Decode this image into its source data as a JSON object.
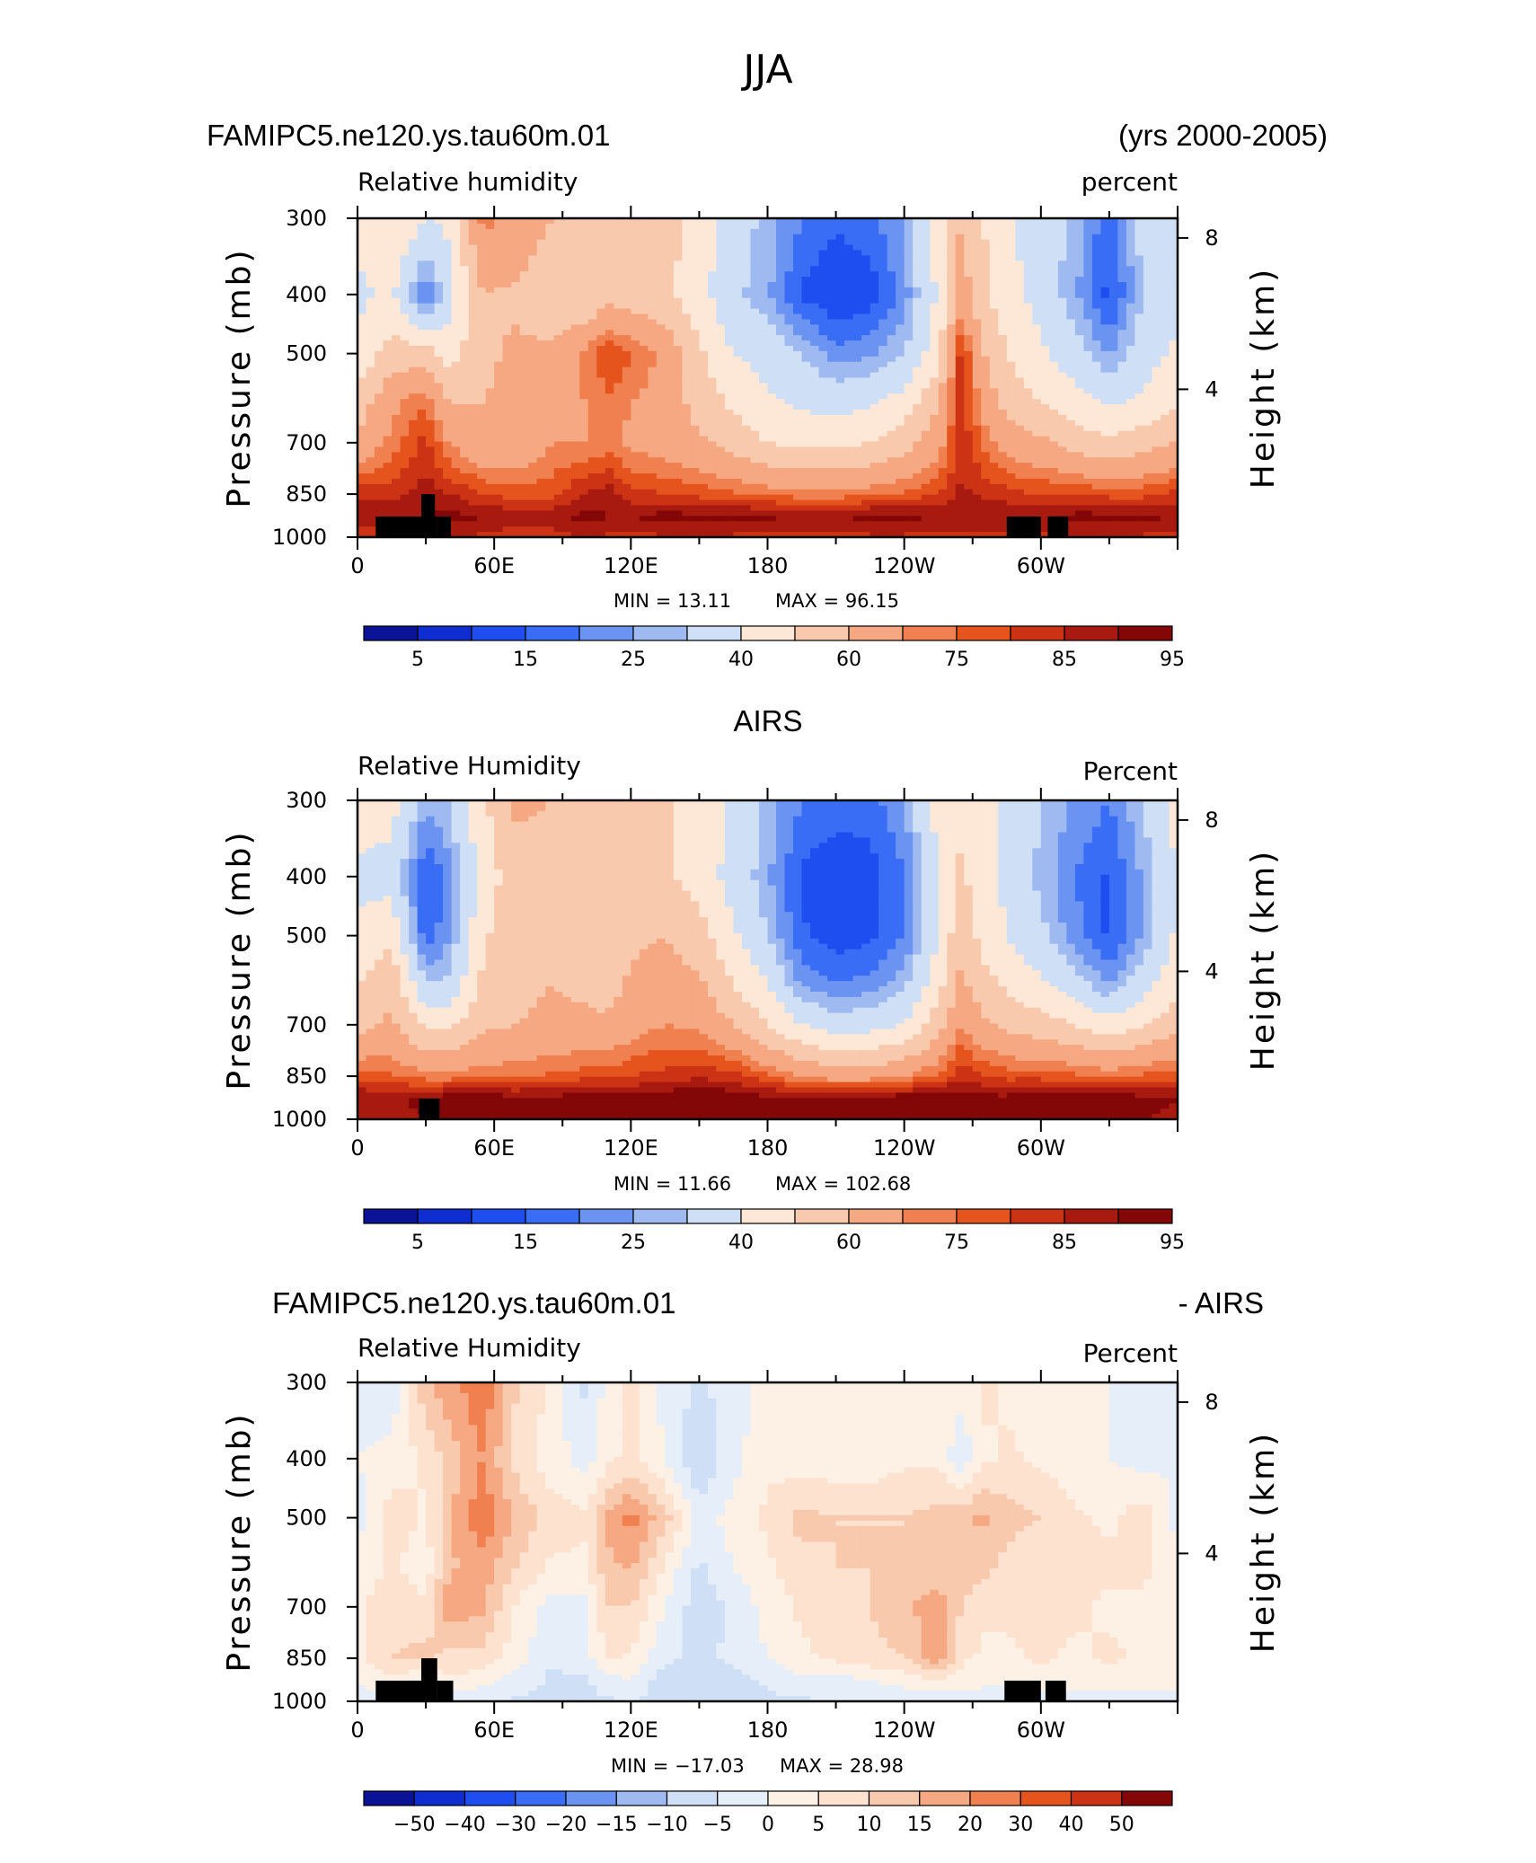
{
  "page_title": "JJA",
  "colors": {
    "abs_scale": [
      "#0a1296",
      "#0f2ed2",
      "#1e4ef0",
      "#3a6df5",
      "#6b94f2",
      "#9fbaf0",
      "#cfe0f6",
      "#fde8d8",
      "#f9c9ad",
      "#f5a882",
      "#f0804f",
      "#e6541e",
      "#cc3314",
      "#a81a10",
      "#830707"
    ],
    "diff_scale": [
      "#0a1296",
      "#0f2ed2",
      "#1e4ef0",
      "#3a6df5",
      "#6b94f2",
      "#9fbaf0",
      "#cfe0f6",
      "#e6eef9",
      "#fdf1e6",
      "#fde2cf",
      "#f9c9ad",
      "#f5a882",
      "#f0804f",
      "#e6541e",
      "#cc3314",
      "#830707"
    ],
    "land_mask": "#000000"
  },
  "panels": [
    {
      "id": "model",
      "header_left": "FAMIPC5.ne120.ys.tau60m.01",
      "header_right": "(yrs 2000-2005)",
      "subtitle_left": "Relative humidity",
      "subtitle_right": "percent",
      "min_text": "MIN =   13.11",
      "max_text": "MAX =   96.15"
    },
    {
      "id": "obs",
      "header_center": "AIRS",
      "subtitle_left": "Relative Humidity",
      "subtitle_right": "Percent",
      "min_text": "MIN =   11.66",
      "max_text": "MAX =  102.68"
    },
    {
      "id": "diff",
      "header_left": "FAMIPC5.ne120.ys.tau60m.01",
      "header_right": "- AIRS",
      "subtitle_left": "Relative Humidity",
      "subtitle_right": "Percent",
      "min_text": "MIN = −17.03",
      "max_text": "MAX =   28.98"
    }
  ],
  "axes": {
    "left_label": "Pressure (mb)",
    "right_label": "Height (km)",
    "pressure_ticks": [
      "300",
      "400",
      "500",
      "700",
      "850",
      "1000"
    ],
    "height_ticks": [
      "8",
      "4"
    ],
    "lon_ticks": [
      "0",
      "60E",
      "120E",
      "180",
      "120W",
      "60W"
    ]
  },
  "colorbars": {
    "abs_labels": [
      "5",
      "15",
      "25",
      "40",
      "60",
      "75",
      "85",
      "95"
    ],
    "diff_labels": [
      "−50",
      "−40",
      "−30",
      "−20",
      "−15",
      "−10",
      "−5",
      "0",
      "5",
      "10",
      "15",
      "20",
      "30",
      "40",
      "50"
    ]
  },
  "chart_data": [
    {
      "type": "heatmap",
      "title": "FAMIPC5.ne120.ys.tau60m.01",
      "subtitle": "Relative humidity",
      "units": "percent",
      "x": "longitude (degrees east, 0 to 360)",
      "y": "pressure (mb)",
      "xlim": [
        0,
        360
      ],
      "ylim": [
        1000,
        300
      ],
      "min": 13.11,
      "max": 96.15,
      "levels": [
        5,
        10,
        15,
        20,
        25,
        30,
        40,
        50,
        60,
        70,
        75,
        80,
        85,
        90,
        95
      ],
      "lon": [
        0,
        15,
        30,
        40,
        55,
        70,
        85,
        100,
        110,
        120,
        135,
        150,
        165,
        180,
        195,
        210,
        225,
        240,
        255,
        265,
        275,
        285,
        300,
        315,
        330,
        345,
        360
      ],
      "lev": [
        300,
        400,
        500,
        600,
        700,
        850,
        925,
        1000
      ],
      "grid": [
        [
          42,
          50,
          40,
          42,
          72,
          68,
          60,
          55,
          58,
          55,
          55,
          45,
          34,
          28,
          20,
          16,
          18,
          26,
          45,
          60,
          50,
          42,
          34,
          28,
          16,
          34,
          40
        ],
        [
          38,
          42,
          18,
          35,
          60,
          58,
          52,
          50,
          56,
          54,
          52,
          44,
          32,
          26,
          14,
          10,
          12,
          22,
          42,
          65,
          52,
          44,
          36,
          26,
          13,
          30,
          36
        ],
        [
          42,
          55,
          55,
          45,
          58,
          62,
          62,
          72,
          80,
          76,
          68,
          52,
          40,
          36,
          30,
          22,
          24,
          30,
          46,
          82,
          60,
          50,
          42,
          34,
          24,
          36,
          42
        ],
        [
          55,
          68,
          75,
          60,
          60,
          62,
          65,
          70,
          74,
          70,
          66,
          56,
          48,
          42,
          38,
          36,
          38,
          44,
          60,
          84,
          66,
          56,
          50,
          44,
          38,
          42,
          48
        ],
        [
          62,
          72,
          82,
          70,
          62,
          62,
          70,
          70,
          72,
          68,
          65,
          62,
          56,
          50,
          48,
          48,
          50,
          56,
          66,
          84,
          74,
          66,
          62,
          56,
          52,
          56,
          60
        ],
        [
          84,
          82,
          88,
          85,
          80,
          78,
          78,
          86,
          88,
          82,
          80,
          78,
          76,
          74,
          72,
          72,
          74,
          76,
          80,
          86,
          84,
          82,
          80,
          80,
          78,
          78,
          82
        ],
        [
          90,
          90,
          90,
          92,
          90,
          88,
          88,
          92,
          90,
          90,
          92,
          92,
          92,
          91,
          90,
          90,
          92,
          92,
          90,
          90,
          90,
          90,
          90,
          92,
          92,
          92,
          90
        ],
        [
          80,
          82,
          84,
          86,
          84,
          82,
          82,
          86,
          84,
          84,
          84,
          84,
          84,
          82,
          82,
          82,
          84,
          84,
          82,
          82,
          82,
          82,
          84,
          84,
          84,
          84,
          82
        ]
      ]
    },
    {
      "type": "heatmap",
      "title": "AIRS",
      "subtitle": "Relative Humidity",
      "units": "Percent",
      "x": "longitude (degrees east, 0 to 360)",
      "y": "pressure (mb)",
      "xlim": [
        0,
        360
      ],
      "ylim": [
        1000,
        300
      ],
      "min": 11.66,
      "max": 102.68,
      "levels": [
        5,
        10,
        15,
        20,
        25,
        30,
        40,
        50,
        60,
        70,
        75,
        80,
        85,
        90,
        95
      ],
      "lon": [
        0,
        15,
        30,
        40,
        55,
        70,
        85,
        100,
        110,
        120,
        135,
        150,
        165,
        180,
        195,
        210,
        225,
        240,
        255,
        265,
        275,
        285,
        300,
        315,
        330,
        345,
        360
      ],
      "lev": [
        300,
        400,
        500,
        600,
        700,
        850,
        925,
        1000
      ],
      "grid": [
        [
          44,
          44,
          26,
          30,
          48,
          62,
          60,
          58,
          50,
          58,
          52,
          46,
          38,
          28,
          20,
          18,
          18,
          24,
          44,
          48,
          42,
          38,
          30,
          24,
          20,
          30,
          44
        ],
        [
          38,
          36,
          14,
          22,
          44,
          56,
          54,
          54,
          50,
          56,
          52,
          46,
          36,
          26,
          14,
          10,
          12,
          20,
          40,
          52,
          44,
          38,
          28,
          20,
          14,
          26,
          40
        ],
        [
          42,
          48,
          16,
          24,
          48,
          58,
          58,
          56,
          50,
          58,
          60,
          54,
          42,
          30,
          16,
          12,
          14,
          20,
          40,
          58,
          46,
          40,
          32,
          22,
          14,
          26,
          42
        ],
        [
          50,
          58,
          30,
          32,
          52,
          58,
          60,
          58,
          56,
          62,
          64,
          62,
          50,
          40,
          24,
          20,
          22,
          28,
          46,
          62,
          54,
          48,
          42,
          34,
          24,
          36,
          48
        ],
        [
          56,
          62,
          48,
          48,
          58,
          60,
          62,
          62,
          62,
          66,
          70,
          68,
          60,
          50,
          40,
          34,
          36,
          40,
          56,
          70,
          62,
          58,
          54,
          50,
          44,
          50,
          56
        ],
        [
          78,
          76,
          72,
          72,
          74,
          74,
          76,
          78,
          78,
          80,
          82,
          84,
          82,
          76,
          70,
          66,
          66,
          70,
          76,
          84,
          80,
          78,
          78,
          76,
          74,
          76,
          78
        ],
        [
          90,
          88,
          92,
          94,
          94,
          92,
          92,
          94,
          94,
          92,
          94,
          96,
          94,
          92,
          92,
          92,
          92,
          94,
          94,
          92,
          92,
          92,
          94,
          94,
          94,
          92,
          90
        ],
        [
          86,
          88,
          90,
          92,
          92,
          90,
          90,
          90,
          92,
          90,
          92,
          94,
          92,
          90,
          92,
          92,
          94,
          96,
          92,
          90,
          90,
          90,
          92,
          92,
          92,
          90,
          88
        ]
      ]
    },
    {
      "type": "heatmap",
      "title": "FAMIPC5.ne120.ys.tau60m.01 - AIRS",
      "subtitle": "Relative Humidity",
      "units": "Percent",
      "x": "longitude (degrees east, 0 to 360)",
      "y": "pressure (mb)",
      "xlim": [
        0,
        360
      ],
      "ylim": [
        1000,
        300
      ],
      "min": -17.03,
      "max": 28.98,
      "levels": [
        -50,
        -40,
        -30,
        -20,
        -15,
        -10,
        -5,
        0,
        5,
        10,
        15,
        20,
        30,
        40,
        50
      ],
      "lon": [
        0,
        15,
        30,
        40,
        55,
        70,
        85,
        100,
        110,
        120,
        135,
        150,
        165,
        180,
        195,
        210,
        225,
        240,
        255,
        265,
        275,
        285,
        300,
        315,
        330,
        345,
        360
      ],
      "lev": [
        300,
        400,
        500,
        600,
        700,
        850,
        925,
        1000
      ],
      "grid": [
        [
          -2,
          -4,
          14,
          18,
          24,
          10,
          4,
          -6,
          2,
          8,
          -2,
          -6,
          -2,
          2,
          2,
          2,
          2,
          2,
          4,
          2,
          6,
          4,
          2,
          4,
          0,
          -4,
          -2
        ],
        [
          0,
          2,
          6,
          12,
          20,
          8,
          2,
          -2,
          4,
          6,
          0,
          -10,
          -2,
          4,
          2,
          2,
          2,
          4,
          4,
          -4,
          4,
          6,
          4,
          2,
          0,
          -2,
          0
        ],
        [
          -2,
          8,
          4,
          14,
          24,
          14,
          8,
          6,
          16,
          22,
          12,
          -2,
          2,
          6,
          12,
          10,
          10,
          10,
          12,
          14,
          16,
          12,
          10,
          6,
          4,
          8,
          -2
        ],
        [
          2,
          6,
          2,
          14,
          18,
          10,
          4,
          4,
          14,
          16,
          4,
          -6,
          0,
          4,
          8,
          10,
          10,
          10,
          12,
          14,
          12,
          8,
          6,
          8,
          6,
          6,
          2
        ],
        [
          4,
          8,
          6,
          18,
          16,
          4,
          -2,
          -2,
          10,
          10,
          0,
          -8,
          -4,
          2,
          6,
          8,
          10,
          14,
          18,
          10,
          6,
          6,
          6,
          6,
          4,
          4,
          2
        ],
        [
          4,
          10,
          12,
          8,
          8,
          2,
          -4,
          -2,
          6,
          4,
          -4,
          -6,
          -4,
          0,
          4,
          6,
          8,
          10,
          18,
          6,
          4,
          4,
          6,
          4,
          6,
          4,
          2
        ],
        [
          0,
          4,
          -2,
          4,
          2,
          -2,
          -6,
          -6,
          -2,
          0,
          -8,
          -10,
          -8,
          -4,
          -2,
          -2,
          0,
          2,
          4,
          2,
          2,
          2,
          2,
          2,
          2,
          2,
          2
        ],
        [
          -2,
          -4,
          -2,
          -4,
          -4,
          -6,
          -6,
          -6,
          -6,
          -4,
          -8,
          -8,
          -6,
          -6,
          -6,
          -4,
          -4,
          -4,
          -4,
          -2,
          -4,
          -4,
          -2,
          -2,
          -2,
          -2,
          -2
        ]
      ]
    }
  ]
}
